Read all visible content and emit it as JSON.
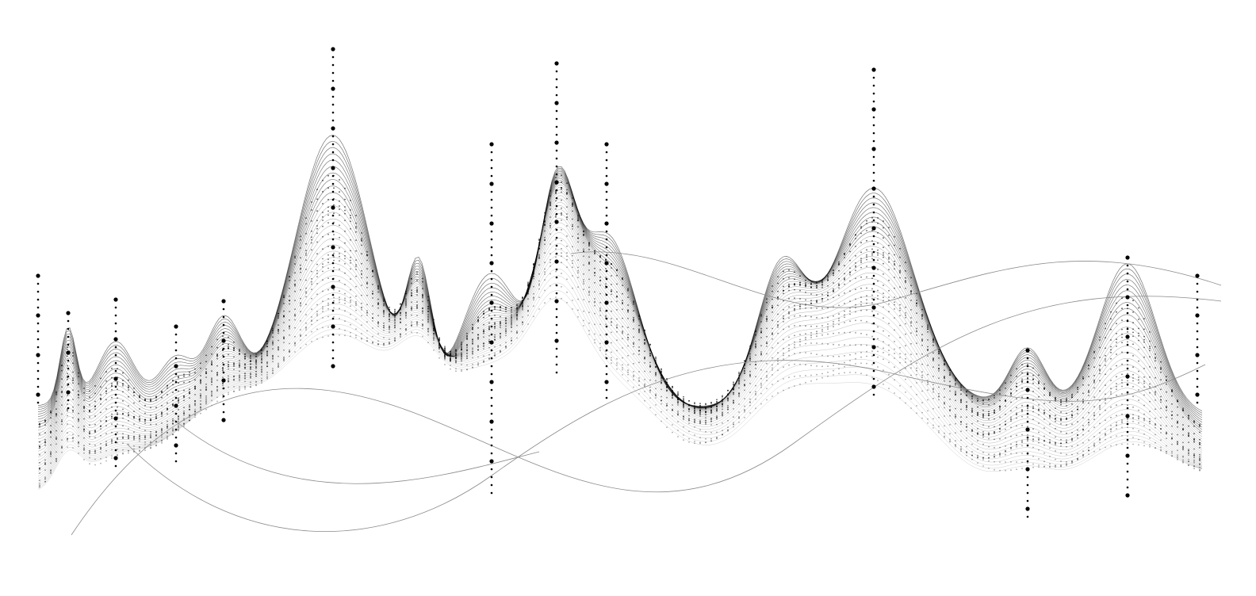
{
  "artwork": {
    "style": "monochrome dotted wireframe waves",
    "colors": {
      "background": "#ffffff",
      "ink": "#000000",
      "faint_line": "#8a8a8a"
    }
  }
}
